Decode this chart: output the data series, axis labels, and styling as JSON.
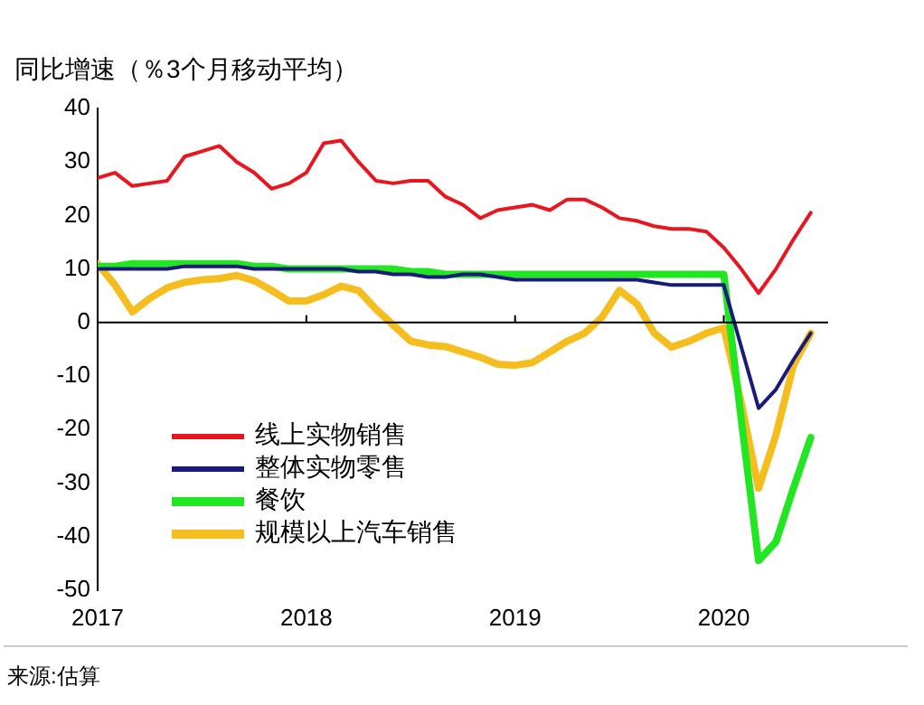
{
  "chart_data": {
    "type": "line",
    "title": "同比增速（％3个月移动平均）",
    "x": [
      "2017-01",
      "2017-02",
      "2017-03",
      "2017-04",
      "2017-05",
      "2017-06",
      "2017-07",
      "2017-08",
      "2017-09",
      "2017-10",
      "2017-11",
      "2017-12",
      "2018-01",
      "2018-02",
      "2018-03",
      "2018-04",
      "2018-05",
      "2018-06",
      "2018-07",
      "2018-08",
      "2018-09",
      "2018-10",
      "2018-11",
      "2018-12",
      "2019-01",
      "2019-02",
      "2019-03",
      "2019-04",
      "2019-05",
      "2019-06",
      "2019-07",
      "2019-08",
      "2019-09",
      "2019-10",
      "2019-11",
      "2019-12",
      "2020-01",
      "2020-02",
      "2020-03",
      "2020-04",
      "2020-05",
      "2020-06"
    ],
    "xlim": [
      "2017-01",
      "2020-07"
    ],
    "xticks": [
      "2017",
      "2018",
      "2019",
      "2020"
    ],
    "ylim": [
      -50,
      40
    ],
    "yticks": [
      -50,
      -40,
      -30,
      -20,
      -10,
      0,
      10,
      20,
      30,
      40
    ],
    "grid": false,
    "ref_lines": [
      {
        "axis": "y",
        "value": 0,
        "color": "#000000"
      }
    ],
    "marker": "none",
    "legend": "bottom left",
    "series": [
      {
        "name": "线上实物销售",
        "color": "#e8161f",
        "values": [
          27,
          28,
          25.5,
          26,
          26.5,
          31,
          32,
          33,
          30,
          28,
          25,
          26,
          28,
          33.5,
          34,
          30,
          26.5,
          26,
          26.5,
          26.5,
          23.5,
          22,
          19.5,
          21,
          21.5,
          22,
          21,
          23,
          23,
          21.5,
          19.5,
          19,
          18,
          17.5,
          17.5,
          17,
          14,
          10,
          5.5,
          10,
          15.5,
          20.5
        ]
      },
      {
        "name": "整体实物零售",
        "color": "#1a1a7a",
        "values": [
          10,
          10,
          10,
          10,
          10,
          10.5,
          10.5,
          10.5,
          10.5,
          10,
          10,
          10,
          10,
          10,
          10,
          9.5,
          9.5,
          9,
          9,
          8.5,
          8.5,
          9,
          9,
          8.5,
          8,
          8,
          8,
          8,
          8,
          8,
          8,
          8,
          7.5,
          7,
          7,
          7,
          7,
          -4.5,
          -16,
          -12.5,
          -7,
          -2
        ]
      },
      {
        "name": "餐饮",
        "color": "#22e622",
        "values": [
          10.5,
          10.5,
          11,
          11,
          11,
          11,
          11,
          11,
          11,
          10.5,
          10.5,
          10,
          10,
          10,
          10,
          10,
          10,
          10,
          9.5,
          9.5,
          9,
          9,
          9,
          9,
          9,
          9,
          9,
          9,
          9,
          9,
          9,
          9,
          9,
          9,
          9,
          9,
          9,
          -18,
          -44.5,
          -41,
          -31,
          -21.5
        ]
      },
      {
        "name": "规模以上汽车销售",
        "color": "#f5be1e",
        "values": [
          11,
          7,
          2,
          4.5,
          6.5,
          7.5,
          8,
          8.2,
          8.8,
          7.8,
          6,
          4,
          4,
          5.2,
          6.8,
          6,
          2.5,
          -0.5,
          -3.5,
          -4.2,
          -4.5,
          -5.5,
          -6.5,
          -7.8,
          -8,
          -7.5,
          -5.5,
          -3.5,
          -2,
          1,
          6,
          3.5,
          -2,
          -4.6,
          -3.5,
          -2,
          -1,
          -15,
          -31,
          -21,
          -8,
          -2
        ]
      }
    ],
    "annotations": [
      "来源:估算"
    ]
  }
}
